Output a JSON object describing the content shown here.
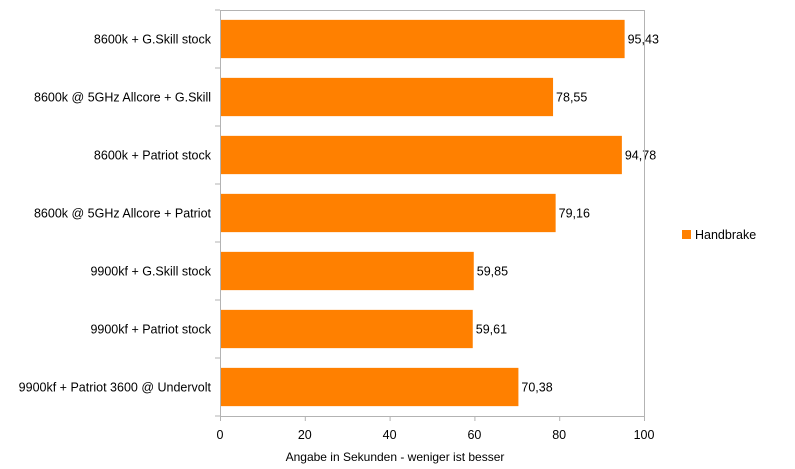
{
  "chart_data": {
    "type": "bar",
    "orientation": "horizontal",
    "categories": [
      "8600k + G.Skill stock",
      "8600k @ 5GHz Allcore + G.Skill",
      "8600k + Patriot stock",
      "8600k @ 5GHz Allcore + Patriot",
      "9900kf + G.Skill stock",
      "9900kf + Patriot stock",
      "9900kf + Patriot 3600 @ Undervolt"
    ],
    "series": [
      {
        "name": "Handbrake",
        "color": "#ff8000",
        "values": [
          95.43,
          78.55,
          94.78,
          79.16,
          59.85,
          59.61,
          70.38
        ],
        "value_labels": [
          "95,43",
          "78,55",
          "94,78",
          "79,16",
          "59,85",
          "59,61",
          "70,38"
        ]
      }
    ],
    "xlim": [
      0,
      100
    ],
    "xticks": [
      0,
      20,
      40,
      60,
      80,
      100
    ],
    "xlabel": "Angabe in Sekunden - weniger ist besser",
    "grid": false,
    "legend": "right"
  }
}
